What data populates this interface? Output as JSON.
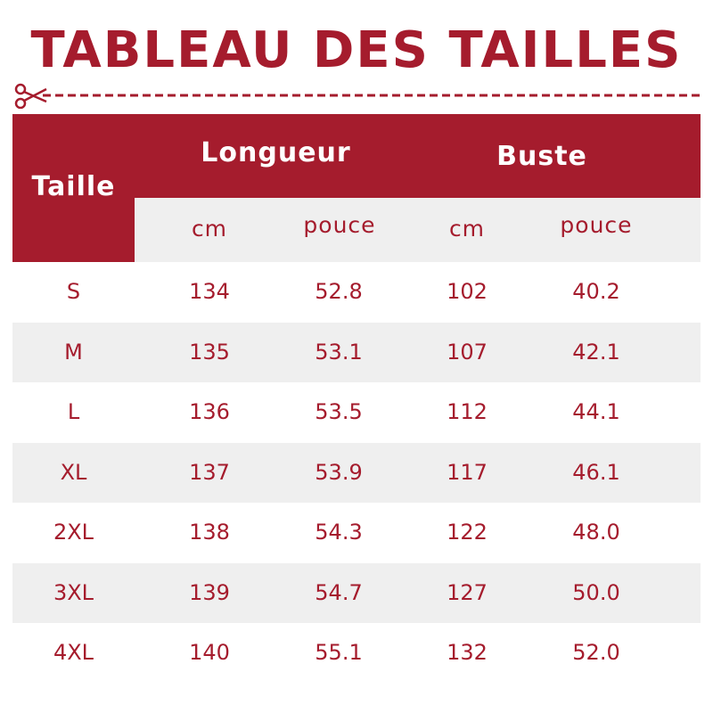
{
  "title": "TABLEAU DES TAILLES",
  "colors": {
    "accent": "#a51c2d",
    "row_alt": "#efefef"
  },
  "icons": {
    "cut": "scissors-icon"
  },
  "header": {
    "size": "Taille",
    "length": "Longueur",
    "bust": "Buste",
    "cm": "cm",
    "inch": "pouce"
  },
  "rows": [
    {
      "size": "S",
      "length_cm": "134",
      "length_in": "52.8",
      "bust_cm": "102",
      "bust_in": "40.2"
    },
    {
      "size": "M",
      "length_cm": "135",
      "length_in": "53.1",
      "bust_cm": "107",
      "bust_in": "42.1"
    },
    {
      "size": "L",
      "length_cm": "136",
      "length_in": "53.5",
      "bust_cm": "112",
      "bust_in": "44.1"
    },
    {
      "size": "XL",
      "length_cm": "137",
      "length_in": "53.9",
      "bust_cm": "117",
      "bust_in": "46.1"
    },
    {
      "size": "2XL",
      "length_cm": "138",
      "length_in": "54.3",
      "bust_cm": "122",
      "bust_in": "48.0"
    },
    {
      "size": "3XL",
      "length_cm": "139",
      "length_in": "54.7",
      "bust_cm": "127",
      "bust_in": "50.0"
    },
    {
      "size": "4XL",
      "length_cm": "140",
      "length_in": "55.1",
      "bust_cm": "132",
      "bust_in": "52.0"
    }
  ]
}
